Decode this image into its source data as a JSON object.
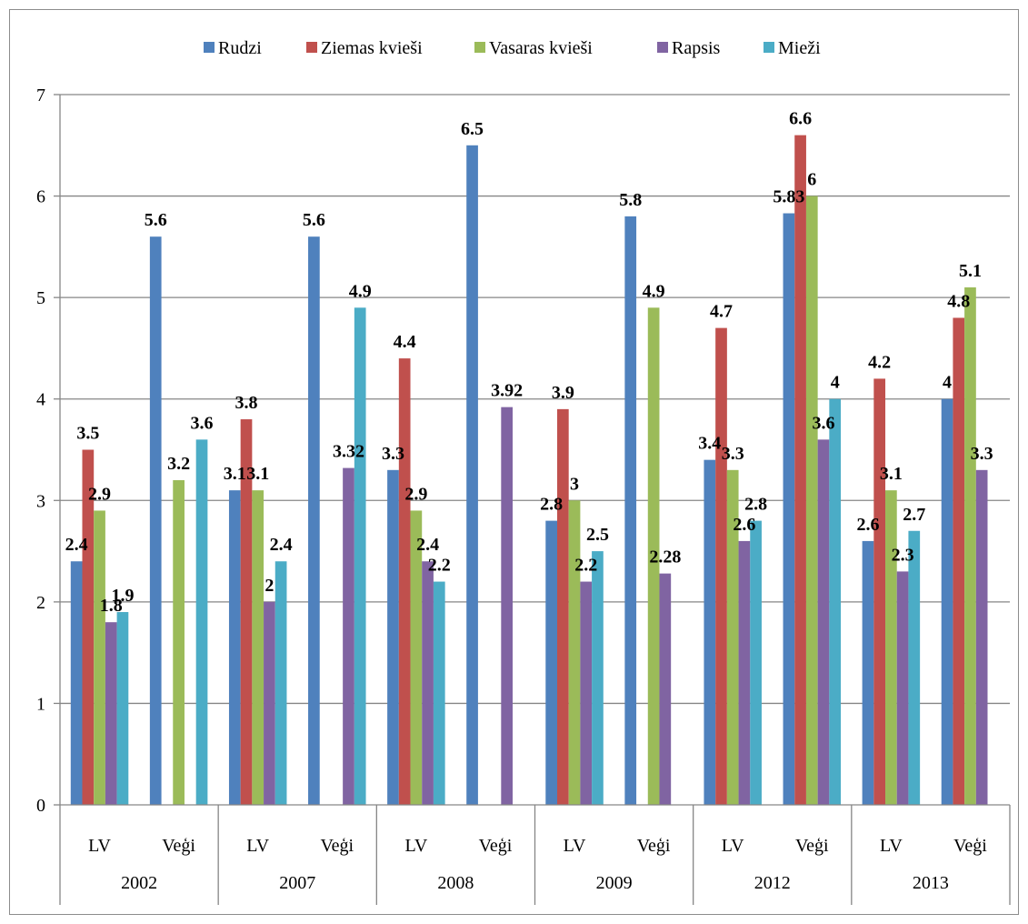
{
  "chart_data": {
    "type": "bar",
    "groups": [
      {
        "year": "2002",
        "categories": [
          "LV",
          "Veģi"
        ]
      },
      {
        "year": "2007",
        "categories": [
          "LV",
          "Veģi"
        ]
      },
      {
        "year": "2008",
        "categories": [
          "LV",
          "Veģi"
        ]
      },
      {
        "year": "2009",
        "categories": [
          "LV",
          "Veģi"
        ]
      },
      {
        "year": "2012",
        "categories": [
          "LV",
          "Veģi"
        ]
      },
      {
        "year": "2013",
        "categories": [
          "LV",
          "Veģi"
        ]
      }
    ],
    "categories": [
      "2002 LV",
      "2002 Veģi",
      "2007 LV",
      "2007 Veģi",
      "2008 LV",
      "2008 Veģi",
      "2009 LV",
      "2009 Veģi",
      "2012 LV",
      "2012 Veģi",
      "2013 LV",
      "2013 Veģi"
    ],
    "series": [
      {
        "name": "Rudzi",
        "color": "#4F81BD",
        "values": [
          2.4,
          5.6,
          3.1,
          5.6,
          3.3,
          6.5,
          2.8,
          5.8,
          3.4,
          5.83,
          2.6,
          4
        ],
        "labels": [
          "2.4",
          "5.6",
          "3.1",
          "5.6",
          "3.3",
          "6.5",
          "2.8",
          "5.8",
          "3.4",
          "5.83",
          "2.6",
          "4"
        ]
      },
      {
        "name": "Ziemas kvieši",
        "color": "#C0504D",
        "values": [
          3.5,
          null,
          3.8,
          null,
          4.4,
          null,
          3.9,
          null,
          4.7,
          6.6,
          4.2,
          4.8
        ],
        "labels": [
          "3.5",
          "",
          "3.8",
          "",
          "4.4",
          "",
          "3.9",
          "",
          "4.7",
          "6.6",
          "4.2",
          "4.8"
        ]
      },
      {
        "name": "Vasaras kvieši",
        "color": "#9BBB59",
        "values": [
          2.9,
          3.2,
          3.1,
          null,
          2.9,
          null,
          3,
          4.9,
          3.3,
          6,
          3.1,
          5.1
        ],
        "labels": [
          "2.9",
          "3.2",
          "3.1",
          "",
          "2.9",
          "",
          "3",
          "4.9",
          "3.3",
          "6",
          "3.1",
          "5.1"
        ]
      },
      {
        "name": "Rapsis",
        "color": "#8064A2",
        "values": [
          1.8,
          null,
          2,
          3.32,
          2.4,
          3.92,
          2.2,
          2.28,
          2.6,
          3.6,
          2.3,
          3.3
        ],
        "labels": [
          "1.8",
          "",
          "2",
          "3.32",
          "2.4",
          "3.92",
          "2.2",
          "2.28",
          "2.6",
          "3.6",
          "2.3",
          "3.3"
        ]
      },
      {
        "name": "Mieži",
        "color": "#4BACC6",
        "values": [
          1.9,
          3.6,
          2.4,
          4.9,
          2.2,
          null,
          2.5,
          null,
          2.8,
          4,
          2.7,
          null
        ],
        "labels": [
          "1.9",
          "3.6",
          "2.4",
          "4.9",
          "2.2",
          "",
          "2.5",
          "",
          "2.8",
          "4",
          "2.7",
          ""
        ]
      }
    ],
    "yticks": [
      "0",
      "1",
      "2",
      "3",
      "4",
      "5",
      "6",
      "7"
    ],
    "ylim": [
      0,
      7
    ],
    "grid": true,
    "legend_position": "top-center",
    "title": "",
    "xlabel": "",
    "ylabel": ""
  }
}
